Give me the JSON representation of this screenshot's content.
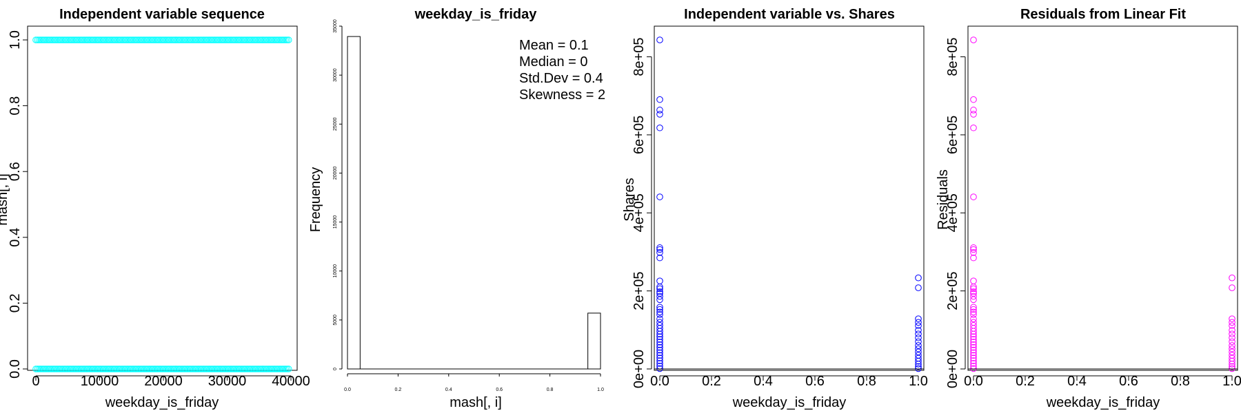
{
  "chart_data": [
    {
      "type": "scatter",
      "title": "Independent variable sequence",
      "xlabel": "weekday_is_friday",
      "ylabel": "mash[, i]",
      "xlim": [
        0,
        40000
      ],
      "ylim": [
        0,
        1
      ],
      "x_ticks": [
        "0",
        "10000",
        "20000",
        "30000",
        "40000"
      ],
      "y_ticks": [
        "0.0",
        "0.2",
        "0.4",
        "0.6",
        "0.8",
        "1.0"
      ],
      "point_color": "#00FFFF",
      "series": [
        {
          "x_range": [
            0,
            39644
          ],
          "y": 1
        },
        {
          "x_range": [
            0,
            39644
          ],
          "y": 0
        }
      ]
    },
    {
      "type": "bar",
      "title": "weekday_is_friday",
      "xlabel": "mash[, i]",
      "ylabel": "Frequency",
      "xlim": [
        0,
        1
      ],
      "ylim": [
        0,
        35000
      ],
      "x_ticks": [
        "0.0",
        "0.2",
        "0.4",
        "0.6",
        "0.8",
        "1.0"
      ],
      "y_ticks": [
        "0",
        "5000",
        "10000",
        "15000",
        "20000",
        "25000",
        "30000",
        "35000"
      ],
      "bins": [
        {
          "x0": 0.0,
          "x1": 0.05,
          "value": 33943
        },
        {
          "x0": 0.95,
          "x1": 1.0,
          "value": 5701
        }
      ],
      "annotations": [
        "Mean = 0.1",
        "Median = 0",
        "Std.Dev = 0.4",
        "Skewness = 2"
      ]
    },
    {
      "type": "scatter",
      "title": "Independent variable vs. Shares",
      "xlabel": "weekday_is_friday",
      "ylabel": "Shares",
      "xlim": [
        0,
        1
      ],
      "ylim": [
        0,
        843300
      ],
      "x_ticks": [
        "0.0",
        "0.2",
        "0.4",
        "0.6",
        "0.8",
        "1.0"
      ],
      "y_ticks": [
        "0e+00",
        "2e+05",
        "4e+05",
        "6e+05",
        "8e+05"
      ],
      "point_color": "#0000FF",
      "points": [
        {
          "x": 0,
          "y": 843300
        },
        {
          "x": 0,
          "y": 690400
        },
        {
          "x": 0,
          "y": 663600
        },
        {
          "x": 0,
          "y": 652900
        },
        {
          "x": 0,
          "y": 617900
        },
        {
          "x": 0,
          "y": 441000
        },
        {
          "x": 0,
          "y": 310800
        },
        {
          "x": 0,
          "y": 306100
        },
        {
          "x": 0,
          "y": 298400
        },
        {
          "x": 0,
          "y": 284700
        },
        {
          "x": 0,
          "y": 225500
        },
        {
          "x": 0,
          "y": 210300
        },
        {
          "x": 0,
          "y": 205600
        },
        {
          "x": 0,
          "y": 197800
        },
        {
          "x": 0,
          "y": 193400
        },
        {
          "x": 0,
          "y": 186000
        },
        {
          "x": 0,
          "y": 177600
        },
        {
          "x": 0,
          "y": 158200
        },
        {
          "x": 0,
          "y": 152600
        },
        {
          "x": 0,
          "y": 145800
        },
        {
          "x": 0,
          "y": 139400
        },
        {
          "x": 0,
          "y": 128200
        },
        {
          "x": 0,
          "y": 119500
        },
        {
          "x": 0,
          "y": 111600
        },
        {
          "x": 0,
          "y": 104100
        },
        {
          "x": 0,
          "y": 96500
        },
        {
          "x": 0,
          "y": 89300
        },
        {
          "x": 0,
          "y": 82600
        },
        {
          "x": 0,
          "y": 75800
        },
        {
          "x": 0,
          "y": 68900
        },
        {
          "x": 0,
          "y": 62100
        },
        {
          "x": 0,
          "y": 55300
        },
        {
          "x": 0,
          "y": 48400
        },
        {
          "x": 0,
          "y": 41600
        },
        {
          "x": 0,
          "y": 34800
        },
        {
          "x": 0,
          "y": 27900
        },
        {
          "x": 0,
          "y": 21100
        },
        {
          "x": 0,
          "y": 14300
        },
        {
          "x": 0,
          "y": 7400
        },
        {
          "x": 0,
          "y": 1000
        },
        {
          "x": 1,
          "y": 233400
        },
        {
          "x": 1,
          "y": 208100
        },
        {
          "x": 1,
          "y": 128500
        },
        {
          "x": 1,
          "y": 119400
        },
        {
          "x": 1,
          "y": 110700
        },
        {
          "x": 1,
          "y": 99300
        },
        {
          "x": 1,
          "y": 89700
        },
        {
          "x": 1,
          "y": 79800
        },
        {
          "x": 1,
          "y": 69900
        },
        {
          "x": 1,
          "y": 60100
        },
        {
          "x": 1,
          "y": 51800
        },
        {
          "x": 1,
          "y": 43500
        },
        {
          "x": 1,
          "y": 35200
        },
        {
          "x": 1,
          "y": 27400
        },
        {
          "x": 1,
          "y": 19800
        },
        {
          "x": 1,
          "y": 12500
        },
        {
          "x": 1,
          "y": 6200
        },
        {
          "x": 1,
          "y": 1000
        }
      ],
      "reference_line": {
        "y": 0
      }
    },
    {
      "type": "scatter",
      "title": "Residuals from Linear Fit",
      "xlabel": "weekday_is_friday",
      "ylabel": "Residuals",
      "xlim": [
        0,
        1
      ],
      "ylim": [
        0,
        843300
      ],
      "x_ticks": [
        "0.0",
        "0.2",
        "0.4",
        "0.6",
        "0.8",
        "1.0"
      ],
      "y_ticks": [
        "0e+00",
        "2e+05",
        "4e+05",
        "6e+05",
        "8e+05"
      ],
      "point_color": "#FF00FF",
      "points": [
        {
          "x": 0,
          "y": 843300
        },
        {
          "x": 0,
          "y": 690400
        },
        {
          "x": 0,
          "y": 663600
        },
        {
          "x": 0,
          "y": 652900
        },
        {
          "x": 0,
          "y": 617900
        },
        {
          "x": 0,
          "y": 441000
        },
        {
          "x": 0,
          "y": 310800
        },
        {
          "x": 0,
          "y": 306100
        },
        {
          "x": 0,
          "y": 298400
        },
        {
          "x": 0,
          "y": 284700
        },
        {
          "x": 0,
          "y": 225500
        },
        {
          "x": 0,
          "y": 210300
        },
        {
          "x": 0,
          "y": 205600
        },
        {
          "x": 0,
          "y": 197800
        },
        {
          "x": 0,
          "y": 193400
        },
        {
          "x": 0,
          "y": 186000
        },
        {
          "x": 0,
          "y": 177600
        },
        {
          "x": 0,
          "y": 158200
        },
        {
          "x": 0,
          "y": 152600
        },
        {
          "x": 0,
          "y": 145800
        },
        {
          "x": 0,
          "y": 139400
        },
        {
          "x": 0,
          "y": 128200
        },
        {
          "x": 0,
          "y": 119500
        },
        {
          "x": 0,
          "y": 111600
        },
        {
          "x": 0,
          "y": 104100
        },
        {
          "x": 0,
          "y": 96500
        },
        {
          "x": 0,
          "y": 89300
        },
        {
          "x": 0,
          "y": 82600
        },
        {
          "x": 0,
          "y": 75800
        },
        {
          "x": 0,
          "y": 68900
        },
        {
          "x": 0,
          "y": 62100
        },
        {
          "x": 0,
          "y": 55300
        },
        {
          "x": 0,
          "y": 48400
        },
        {
          "x": 0,
          "y": 41600
        },
        {
          "x": 0,
          "y": 34800
        },
        {
          "x": 0,
          "y": 27900
        },
        {
          "x": 0,
          "y": 21100
        },
        {
          "x": 0,
          "y": 14300
        },
        {
          "x": 0,
          "y": 7400
        },
        {
          "x": 0,
          "y": 1000
        },
        {
          "x": 1,
          "y": 233400
        },
        {
          "x": 1,
          "y": 208100
        },
        {
          "x": 1,
          "y": 128500
        },
        {
          "x": 1,
          "y": 119400
        },
        {
          "x": 1,
          "y": 110700
        },
        {
          "x": 1,
          "y": 99300
        },
        {
          "x": 1,
          "y": 89700
        },
        {
          "x": 1,
          "y": 79800
        },
        {
          "x": 1,
          "y": 69900
        },
        {
          "x": 1,
          "y": 60100
        },
        {
          "x": 1,
          "y": 51800
        },
        {
          "x": 1,
          "y": 43500
        },
        {
          "x": 1,
          "y": 35200
        },
        {
          "x": 1,
          "y": 27400
        },
        {
          "x": 1,
          "y": 19800
        },
        {
          "x": 1,
          "y": 12500
        },
        {
          "x": 1,
          "y": 6200
        },
        {
          "x": 1,
          "y": 1000
        }
      ],
      "reference_line": {
        "y": 0
      }
    }
  ]
}
